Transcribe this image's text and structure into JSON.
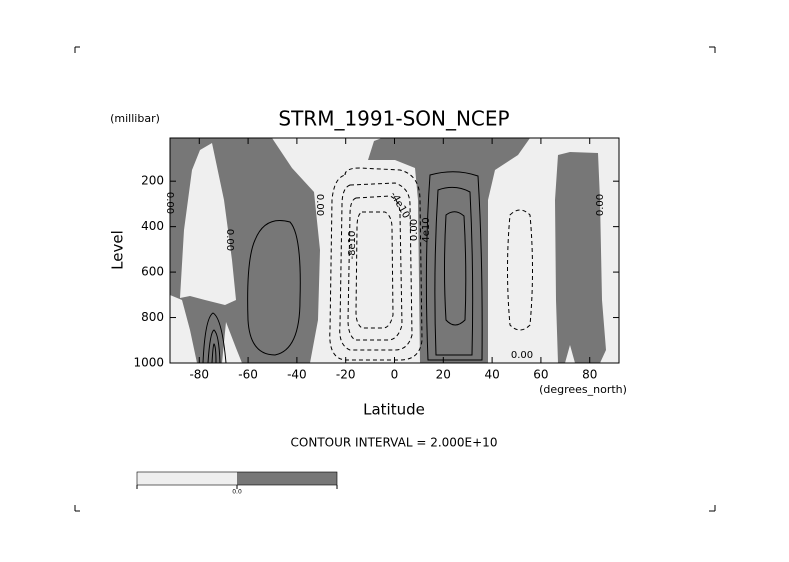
{
  "chart_data": {
    "type": "contour",
    "title": "STRM_1991-SON_NCEP",
    "x_label": "Latitude",
    "x_units": "(degrees_north)",
    "y_label": "Level",
    "y_units": "(millibar)",
    "note": "CONTOUR INTERVAL = 2.000E+10",
    "xlim": [
      -92,
      92
    ],
    "xticks": [
      -80,
      -60,
      -40,
      -20,
      0,
      20,
      40,
      60,
      80
    ],
    "ylim": [
      1000,
      10
    ],
    "yticks": [
      200,
      400,
      600,
      800,
      1000
    ],
    "contour_labels": [
      "0.00",
      "0.00",
      "0.00",
      "-8e10",
      "-4e10",
      "0.00",
      "4e10",
      "0.00",
      "0.00"
    ],
    "colorbar_labels": [
      "0.0"
    ],
    "low_color": "#efefef",
    "high_color": "#777777"
  }
}
